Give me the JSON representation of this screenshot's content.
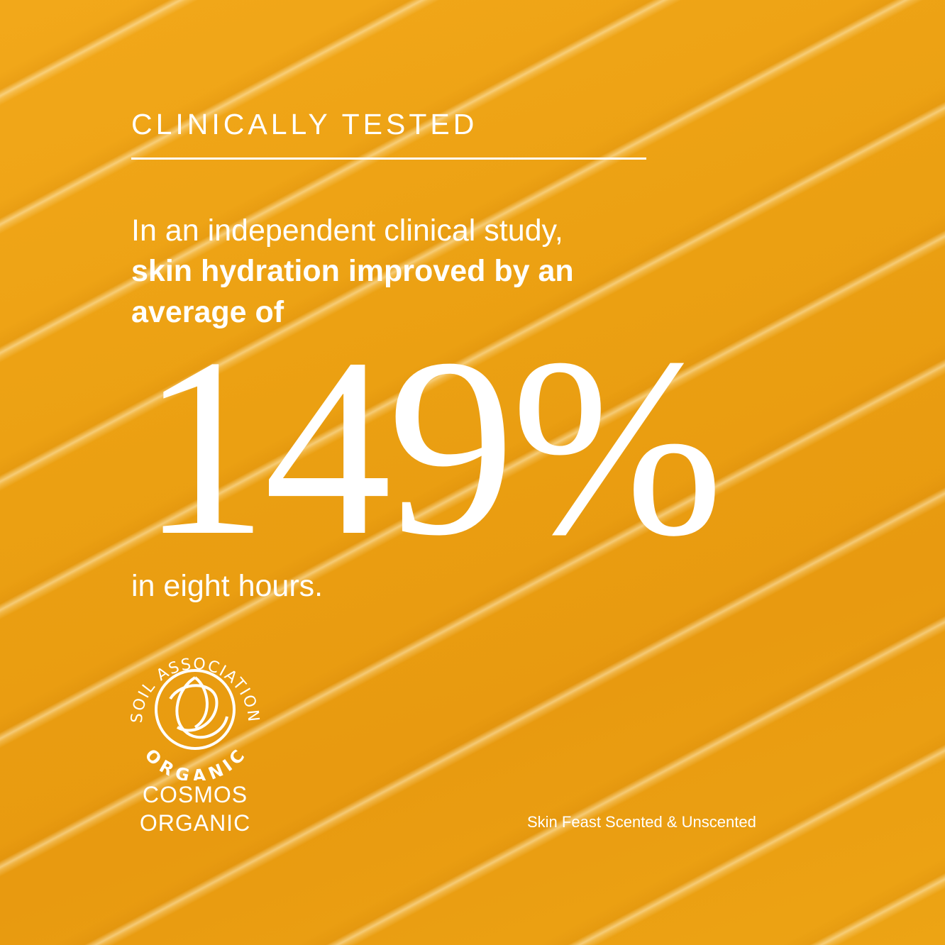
{
  "eyebrow": "CLINICALLY TESTED",
  "intro_line": "In an independent clinical study,",
  "bold_line_1": "skin hydration improved by an",
  "bold_line_2": "average of",
  "stat": "149%",
  "after_stat": "in eight hours.",
  "certification": {
    "logo_text_top": "SOIL ASSOCIATION",
    "logo_text_bottom": "ORGANIC",
    "label_line_1": "COSMOS",
    "label_line_2": "ORGANIC"
  },
  "caption": "Skin Feast Scented & Unscented",
  "colors": {
    "background": "#eba012",
    "text": "#ffffff"
  }
}
